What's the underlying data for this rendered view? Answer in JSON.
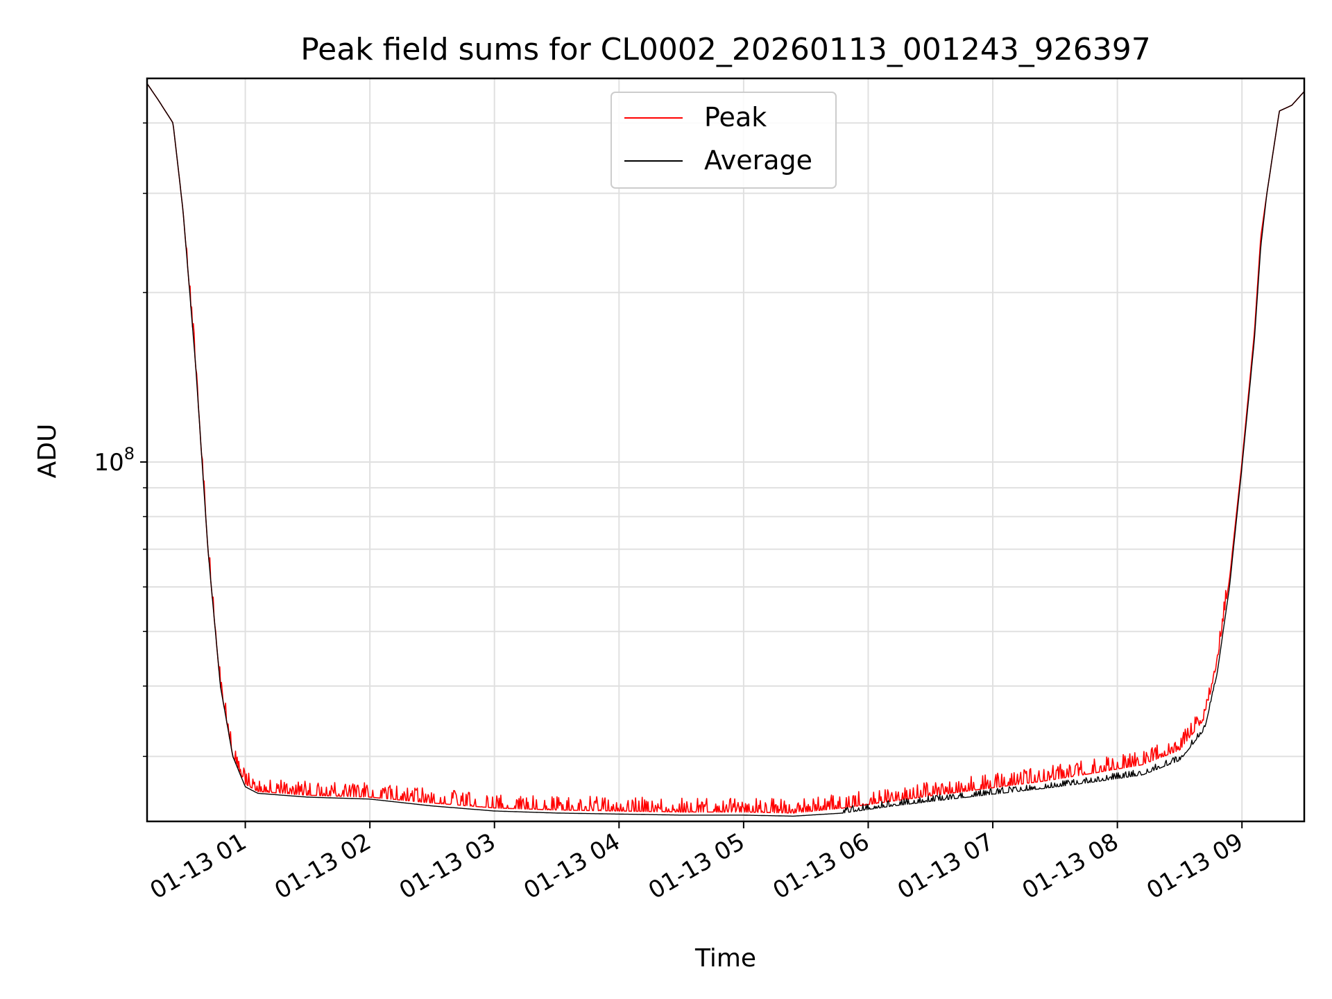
{
  "chart_data": {
    "type": "line",
    "title": "Peak field sums for CL0002_20260113_001243_926397",
    "xlabel": "Time",
    "ylabel": "ADU",
    "y_scale": "log",
    "ylim": [
      23000000,
      480000000
    ],
    "x_unit": "hours since 2026-01-13 00:00",
    "xlim": [
      0.2117,
      9.5
    ],
    "x_tick_values": [
      1,
      2,
      3,
      4,
      5,
      6,
      7,
      8,
      9
    ],
    "x_tick_labels": [
      "01-13 01",
      "01-13 02",
      "01-13 03",
      "01-13 04",
      "01-13 05",
      "01-13 06",
      "01-13 07",
      "01-13 08",
      "01-13 09"
    ],
    "y_major_tick_values": [
      100000000
    ],
    "y_major_tick_label_base": "10",
    "y_major_tick_label_exponent": "8",
    "y_minor_tick_values": [
      30000000,
      40000000,
      50000000,
      60000000,
      70000000,
      80000000,
      90000000,
      200000000,
      300000000,
      400000000
    ],
    "grid": true,
    "legend_position": "top-center",
    "legend": [
      "Peak",
      "Average"
    ],
    "series": [
      {
        "name": "Peak",
        "color": "#ff0000",
        "x": [
          0.2117,
          0.3,
          0.42,
          0.5,
          0.6,
          0.7,
          0.8,
          0.9,
          1.0,
          1.1,
          1.5,
          2.0,
          2.5,
          3.0,
          3.5,
          4.0,
          4.5,
          5.0,
          5.4,
          5.8,
          6.2,
          6.6,
          7.0,
          7.4,
          7.8,
          8.2,
          8.5,
          8.7,
          8.8,
          8.9,
          9.0,
          9.1,
          9.15,
          9.2,
          9.3,
          9.4,
          9.5
        ],
        "y": [
          470000000,
          440000000,
          400000000,
          280000000,
          150000000,
          70000000,
          40000000,
          30000000,
          26800000,
          26000000,
          25600000,
          25400000,
          24800000,
          24300000,
          24100000,
          24000000,
          23900000,
          23900000,
          23800000,
          24300000,
          25000000,
          25700000,
          26400000,
          27100000,
          28000000,
          29000000,
          30800000,
          35000000,
          44000000,
          62000000,
          100000000,
          170000000,
          250000000,
          300000000,
          420000000,
          430000000,
          455000000
        ],
        "noise": {
          "start": 0.5,
          "end": 8.9,
          "amplitude_fraction": 0.06
        }
      },
      {
        "name": "Average",
        "color": "#000000",
        "x": [
          0.2117,
          0.3,
          0.42,
          0.5,
          0.6,
          0.7,
          0.8,
          0.9,
          1.0,
          1.1,
          1.5,
          2.0,
          2.5,
          3.0,
          3.5,
          4.0,
          4.5,
          5.0,
          5.4,
          5.8,
          6.2,
          6.6,
          7.0,
          7.4,
          7.8,
          8.2,
          8.5,
          8.7,
          8.8,
          8.9,
          9.0,
          9.1,
          9.15,
          9.2,
          9.3,
          9.4,
          9.5
        ],
        "y": [
          470000000,
          440000000,
          400000000,
          280000000,
          150000000,
          70000000,
          40000000,
          30000000,
          26500000,
          25800000,
          25400000,
          25200000,
          24500000,
          24000000,
          23800000,
          23700000,
          23600000,
          23600000,
          23500000,
          23800000,
          24500000,
          25100000,
          25700000,
          26300000,
          27000000,
          27800000,
          29500000,
          33500000,
          42000000,
          60000000,
          98000000,
          165000000,
          240000000,
          300000000,
          420000000,
          430000000,
          455000000
        ],
        "noise": {
          "start": 5.8,
          "end": 8.8,
          "amplitude_fraction": 0.025
        }
      }
    ]
  }
}
